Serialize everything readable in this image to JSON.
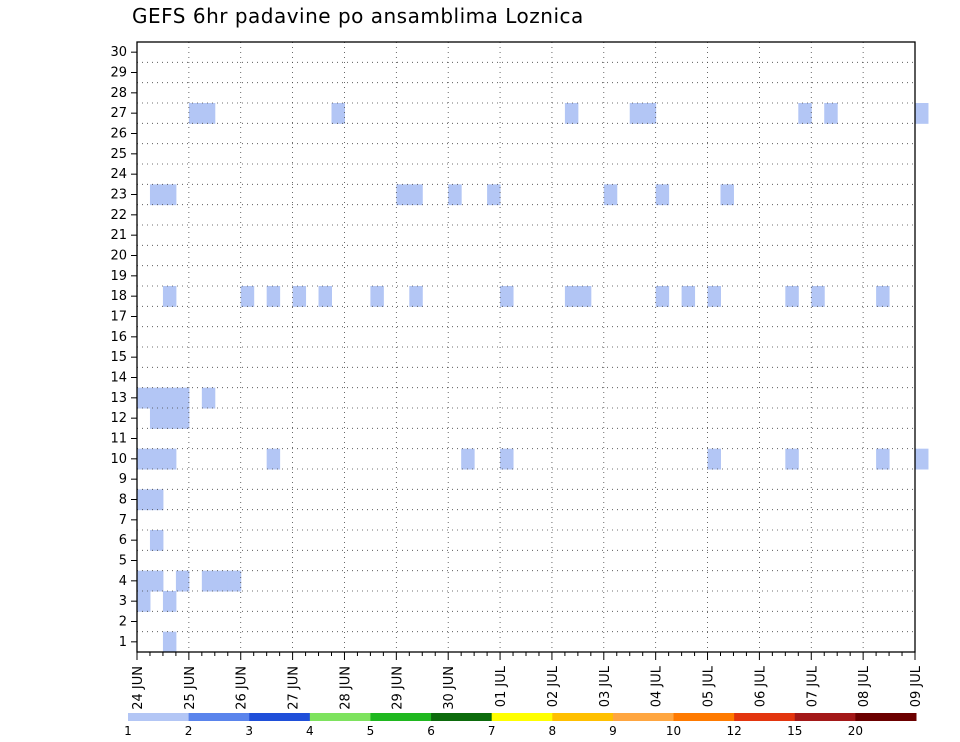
{
  "chart_data": {
    "type": "heatmap",
    "title": "GEFS 6hr padavine po ansamblima Loznica",
    "y_members": [
      1,
      2,
      3,
      4,
      5,
      6,
      7,
      8,
      9,
      10,
      11,
      12,
      13,
      14,
      15,
      16,
      17,
      18,
      19,
      20,
      21,
      22,
      23,
      24,
      25,
      26,
      27,
      28,
      29,
      30
    ],
    "x_labels": [
      "24 JUN",
      "25 JUN",
      "26 JUN",
      "27 JUN",
      "28 JUN",
      "29 JUN",
      "30 JUN",
      "01 JUL",
      "02 JUL",
      "03 JUL",
      "04 JUL",
      "05 JUL",
      "06 JUL",
      "07 JUL",
      "08 JUL",
      "09 JUL"
    ],
    "steps_6h": 61,
    "grid": "dotted",
    "colorbar": {
      "labels": [
        "1",
        "2",
        "3",
        "4",
        "5",
        "6",
        "7",
        "8",
        "9",
        "10",
        "12",
        "15",
        "20"
      ],
      "colors": [
        "#b3c6f5",
        "#5a84ec",
        "#1f4fd9",
        "#7ee35e",
        "#1fb81f",
        "#0c6b0c",
        "#ffff00",
        "#ffc000",
        "#ffa640",
        "#ff7a00",
        "#e3350e",
        "#a31818",
        "#6b0000"
      ]
    },
    "cells": [
      [
        1,
        0,
        2
      ],
      [
        1,
        1,
        5
      ],
      [
        1,
        2,
        0
      ],
      [
        1,
        3,
        3
      ],
      [
        1,
        6,
        3
      ],
      [
        1,
        7,
        3
      ],
      [
        1,
        5,
        3
      ],
      [
        1,
        0,
        3
      ],
      [
        1,
        1,
        3
      ],
      [
        1,
        0,
        7
      ],
      [
        1,
        1,
        7
      ],
      [
        1,
        2,
        2
      ],
      [
        1,
        1,
        11
      ],
      [
        1,
        2,
        11
      ],
      [
        1,
        3,
        11
      ],
      [
        1,
        0,
        12
      ],
      [
        1,
        1,
        12
      ],
      [
        1,
        2,
        12
      ],
      [
        1,
        3,
        12
      ],
      [
        1,
        5,
        12
      ],
      [
        1,
        2,
        17
      ],
      [
        1,
        8,
        17
      ],
      [
        1,
        10,
        17
      ],
      [
        1,
        12,
        17
      ],
      [
        1,
        14,
        17
      ],
      [
        1,
        18,
        17
      ],
      [
        1,
        21,
        17
      ],
      [
        1,
        28,
        17
      ],
      [
        1,
        33,
        17
      ],
      [
        1,
        34,
        17
      ],
      [
        1,
        40,
        17
      ],
      [
        1,
        42,
        17
      ],
      [
        1,
        44,
        17
      ],
      [
        1,
        50,
        17
      ],
      [
        1,
        52,
        17
      ],
      [
        1,
        57,
        17
      ],
      [
        1,
        1,
        22
      ],
      [
        1,
        2,
        22
      ],
      [
        1,
        20,
        22
      ],
      [
        1,
        21,
        22
      ],
      [
        1,
        24,
        22
      ],
      [
        1,
        27,
        22
      ],
      [
        1,
        36,
        22
      ],
      [
        1,
        40,
        22
      ],
      [
        1,
        45,
        22
      ],
      [
        1,
        4,
        26
      ],
      [
        1,
        5,
        26
      ],
      [
        1,
        15,
        26
      ],
      [
        1,
        33,
        26
      ],
      [
        1,
        38,
        26
      ],
      [
        1,
        39,
        26
      ],
      [
        1,
        51,
        26
      ],
      [
        1,
        53,
        26
      ],
      [
        1,
        60,
        26
      ],
      [
        1,
        0,
        9
      ],
      [
        1,
        1,
        9
      ],
      [
        1,
        2,
        9
      ],
      [
        1,
        10,
        9
      ],
      [
        1,
        25,
        9
      ],
      [
        1,
        28,
        9
      ],
      [
        1,
        44,
        9
      ],
      [
        1,
        50,
        9
      ],
      [
        1,
        57,
        9
      ],
      [
        1,
        60,
        9
      ]
    ]
  }
}
